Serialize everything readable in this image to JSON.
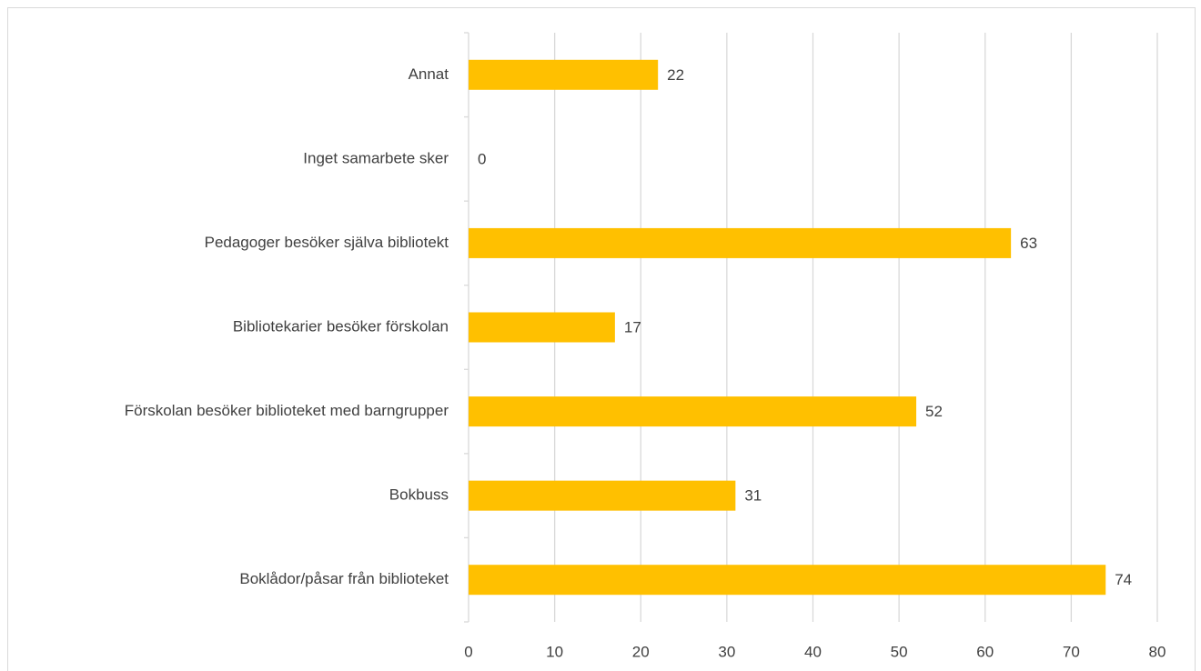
{
  "chart_data": {
    "type": "bar",
    "orientation": "horizontal",
    "categories": [
      "Annat",
      "Inget samarbete sker",
      "Pedagoger besöker själva bibliotekt",
      "Bibliotekarier besöker förskolan",
      "Förskolan besöker biblioteket med barngrupper",
      "Bokbuss",
      "Boklådor/påsar från biblioteket"
    ],
    "values": [
      22,
      0,
      63,
      17,
      52,
      31,
      74
    ],
    "color": "#ffc000",
    "xlim": [
      0,
      80
    ],
    "xticks": [
      0,
      10,
      20,
      30,
      40,
      50,
      60,
      70,
      80
    ],
    "grid": true
  }
}
